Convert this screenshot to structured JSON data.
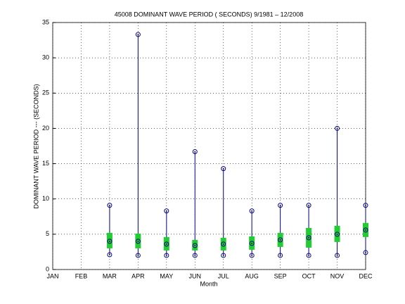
{
  "chart_data": {
    "type": "range",
    "title": "45008  DOMINANT WAVE PERIOD ( SECONDS) 9/1981 – 12/2008",
    "xlabel": "Month",
    "ylabel": "DOMINANT WAVE PERIOD --- (SECONDS)",
    "categories": [
      "JAN",
      "FEB",
      "MAR",
      "APR",
      "MAY",
      "JUN",
      "JUL",
      "AUG",
      "SEP",
      "OCT",
      "NOV",
      "DEC"
    ],
    "max": [
      null,
      null,
      9.1,
      33.3,
      8.3,
      16.7,
      14.3,
      8.3,
      9.1,
      9.1,
      20.0,
      9.1
    ],
    "min": [
      null,
      null,
      2.1,
      2.0,
      2.0,
      2.0,
      2.0,
      2.0,
      2.0,
      2.0,
      2.0,
      2.4
    ],
    "mean": [
      null,
      null,
      4.0,
      4.0,
      3.6,
      3.4,
      3.6,
      3.7,
      4.2,
      4.5,
      5.0,
      5.6
    ],
    "box_low": [
      null,
      null,
      3.0,
      3.0,
      2.7,
      2.7,
      2.7,
      2.8,
      3.2,
      3.1,
      3.9,
      4.6
    ],
    "box_high": [
      null,
      null,
      5.2,
      5.1,
      4.6,
      4.2,
      4.5,
      4.7,
      5.2,
      5.9,
      6.2,
      6.6
    ],
    "line_color": "#00008b",
    "box_color": "#22cc33",
    "ylim": [
      0,
      35
    ],
    "yticks": [
      0,
      5,
      10,
      15,
      20,
      25,
      30,
      35
    ],
    "grid": true
  }
}
